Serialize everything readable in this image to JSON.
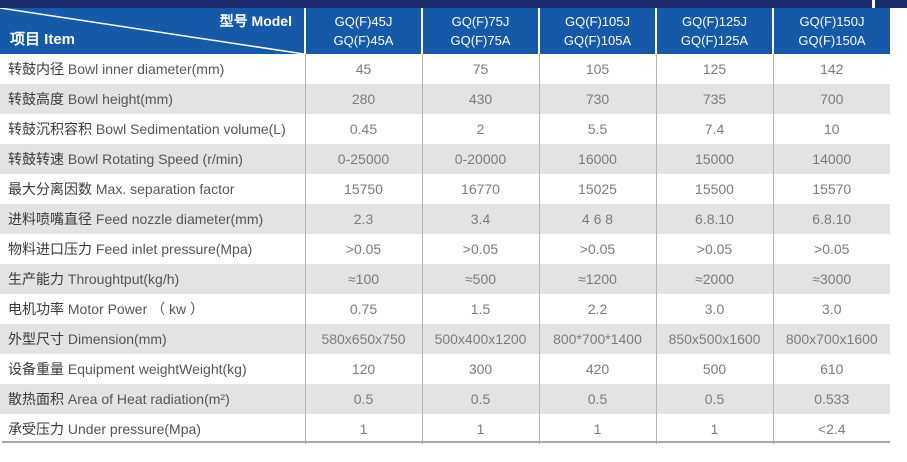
{
  "colors": {
    "header_blue": "#1659a8",
    "accent_navy": "#1d2e6e",
    "stripe_gray": "#e3e3e3",
    "data_text": "#7c7c7c",
    "grid_line": "#b3b3b3"
  },
  "table": {
    "corner": {
      "model_label": "型号 Model",
      "item_label": "项目 Item"
    },
    "columns": [
      {
        "line1": "GQ(F)45J",
        "line2": "GQ(F)45A"
      },
      {
        "line1": "GQ(F)75J",
        "line2": "GQ(F)75A"
      },
      {
        "line1": "GQ(F)105J",
        "line2": "GQ(F)105A"
      },
      {
        "line1": "GQ(F)125J",
        "line2": "GQ(F)125A"
      },
      {
        "line1": "GQ(F)150J",
        "line2": "GQ(F)150A"
      }
    ],
    "rows": [
      {
        "zh": "转鼓内径",
        "en": "Bowl inner diameter(mm)",
        "values": [
          "45",
          "75",
          "105",
          "125",
          "142"
        ]
      },
      {
        "zh": "转鼓高度",
        "en": "Bowl height(mm)",
        "values": [
          "280",
          "430",
          "730",
          "735",
          "700"
        ]
      },
      {
        "zh": "转鼓沉积容积",
        "en": "Bowl Sedimentation volume(L)",
        "values": [
          "0.45",
          "2",
          "5.5",
          "7.4",
          "10"
        ]
      },
      {
        "zh": "转鼓转速",
        "en": "Bowl Rotating Speed (r/min)",
        "values": [
          "0-25000",
          "0-20000",
          "16000",
          "15000",
          "14000"
        ]
      },
      {
        "zh": "最大分离因数",
        "en": "Max. separation factor",
        "values": [
          "15750",
          "16770",
          "15025",
          "15500",
          "15570"
        ]
      },
      {
        "zh": "进料喷嘴直径",
        "en": "Feed nozzle diameter(mm)",
        "values": [
          "2.3",
          "3.4",
          "4 6 8",
          "6.8.10",
          "6.8.10"
        ]
      },
      {
        "zh": "物料进口压力",
        "en": "Feed inlet pressure(Mpa)",
        "values": [
          ">0.05",
          ">0.05",
          ">0.05",
          ">0.05",
          ">0.05"
        ]
      },
      {
        "zh": "生产能力",
        "en": "Throughtput(kg/h)",
        "values": [
          "≈100",
          "≈500",
          "≈1200",
          "≈2000",
          "≈3000"
        ]
      },
      {
        "zh": "电机功率",
        "en": "Motor Power （ kw ）",
        "values": [
          "0.75",
          "1.5",
          "2.2",
          "3.0",
          "3.0"
        ]
      },
      {
        "zh": "外型尺寸",
        "en": "Dimension(mm)",
        "values": [
          "580x650x750",
          "500x400x1200",
          "800*700*1400",
          "850x500x1600",
          "800x700x1600"
        ]
      },
      {
        "zh": "设备重量",
        "en": "Equipment weightWeight(kg)",
        "values": [
          "120",
          "300",
          "420",
          "500",
          "610"
        ]
      },
      {
        "zh": "散热面积",
        "en": "Area of Heat radiation(m²)",
        "values": [
          "0.5",
          "0.5",
          "0.5",
          "0.5",
          "0.533"
        ]
      },
      {
        "zh": "承受压力",
        "en": "Under pressure(Mpa)",
        "values": [
          "1",
          "1",
          "1",
          "1",
          "<2.4"
        ]
      }
    ]
  }
}
